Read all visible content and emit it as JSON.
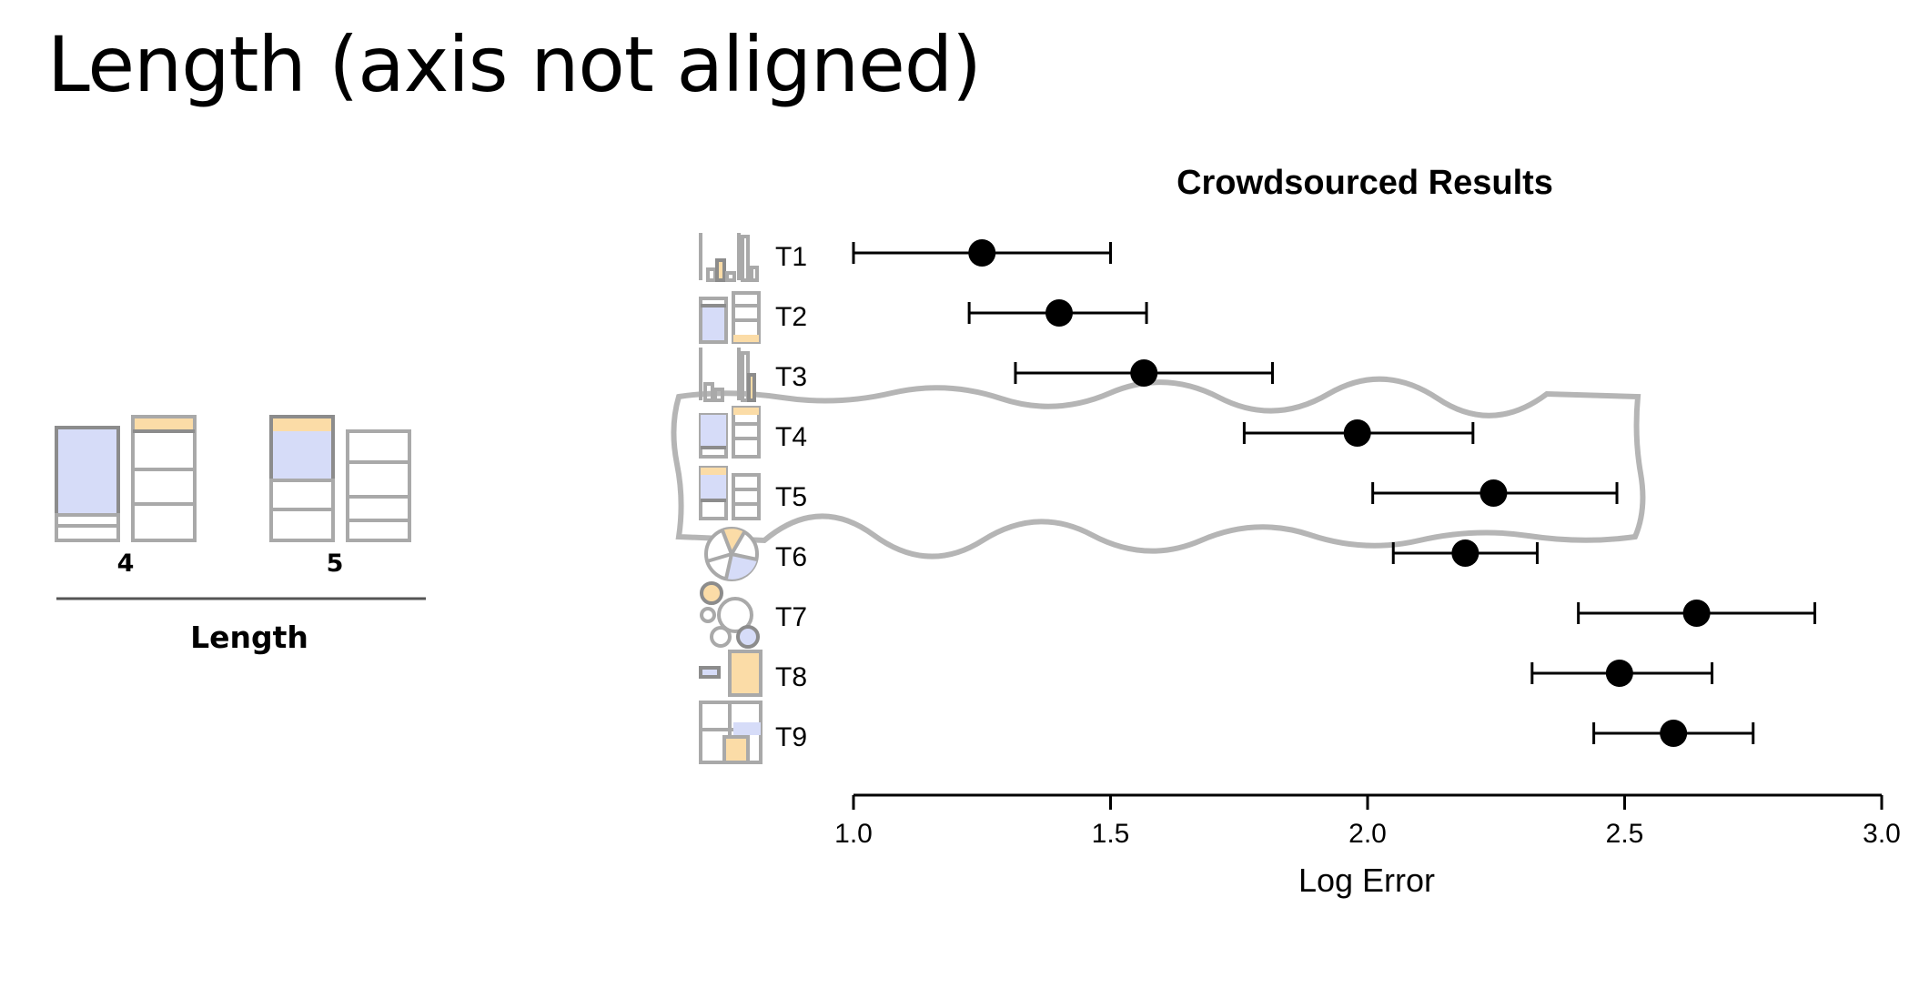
{
  "slide": {
    "title": "Length (axis not aligned)"
  },
  "left_panel": {
    "labels": [
      "4",
      "5"
    ],
    "title": "Length"
  },
  "chart_data": {
    "type": "errorbar",
    "title": "Crowdsourced Results",
    "xlabel": "Log Error",
    "ylabel": "",
    "xlim": [
      1.0,
      3.0
    ],
    "xticks": [
      1.0,
      1.5,
      2.0,
      2.5,
      3.0
    ],
    "xtick_labels": [
      "1.0",
      "1.5",
      "2.0",
      "2.5",
      "3.0"
    ],
    "categories": [
      "T1",
      "T2",
      "T3",
      "T4",
      "T5",
      "T6",
      "T7",
      "T8",
      "T9"
    ],
    "values": [
      1.25,
      1.4,
      1.565,
      1.98,
      2.245,
      2.19,
      2.64,
      2.49,
      2.595
    ],
    "lower": [
      1.0,
      1.225,
      1.315,
      1.76,
      2.01,
      2.05,
      2.41,
      2.32,
      2.44
    ],
    "upper": [
      1.5,
      1.57,
      1.815,
      2.205,
      2.485,
      2.33,
      2.87,
      2.67,
      2.75
    ],
    "highlight": [
      "T4",
      "T5"
    ],
    "grid": false,
    "legend": "none"
  },
  "colors": {
    "blue": "#d6dcf8",
    "tan": "#fbdca7",
    "icon_stroke": "#a9a9a9",
    "highlight_stroke": "#b5b5b5",
    "marker": "#000000"
  }
}
